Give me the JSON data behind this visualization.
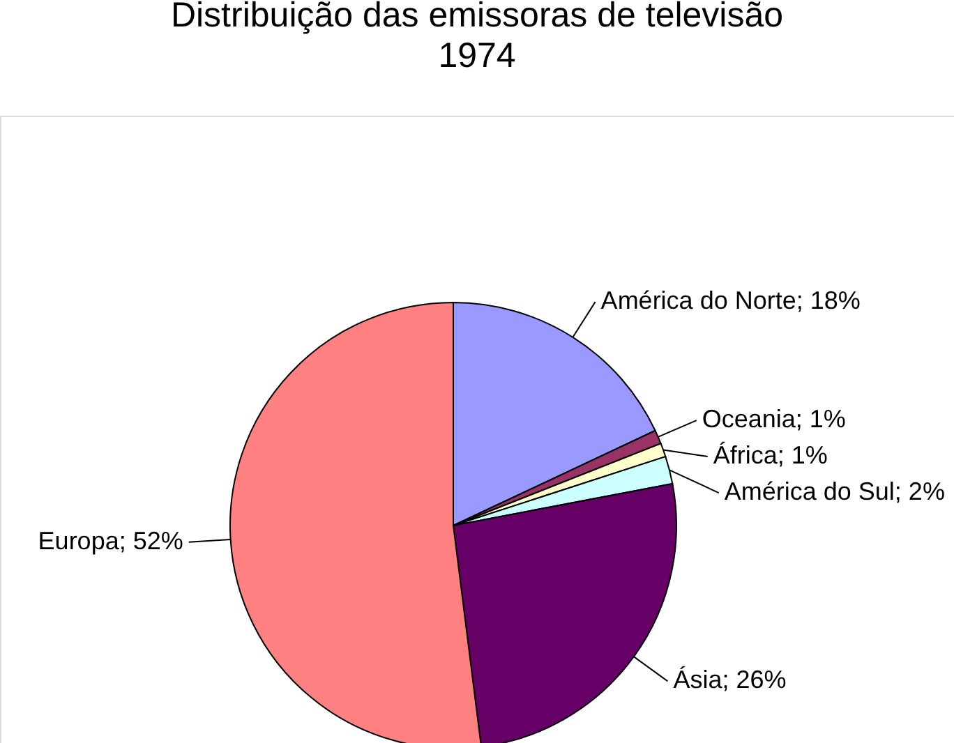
{
  "chart_data": {
    "type": "pie",
    "title": "Distribuição das emissoras de televisão",
    "subtitle": "1974",
    "categories": [
      "América do Norte",
      "Oceania",
      "África",
      "América do Sul",
      "Ásia",
      "Europa"
    ],
    "values": [
      18,
      1,
      1,
      2,
      26,
      52
    ],
    "value_labels": [
      "18%",
      "1%",
      "1%",
      "2%",
      "26%",
      "52%"
    ],
    "colors": [
      "#9999ff",
      "#993366",
      "#ffffcc",
      "#ccffff",
      "#660066",
      "#ff8080"
    ],
    "legend": false
  }
}
